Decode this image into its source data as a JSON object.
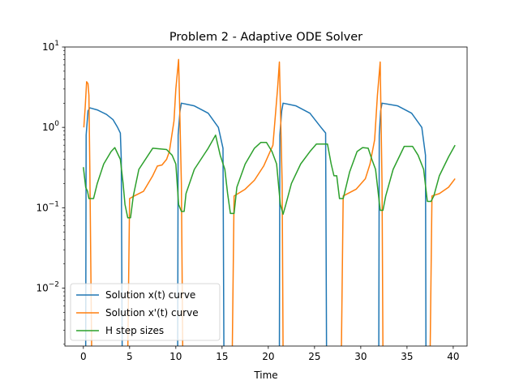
{
  "chart_data": {
    "type": "line",
    "title": "Problem 2 - Adaptive ODE Solver",
    "xlabel": "Time",
    "ylabel": "",
    "yscale": "log",
    "xlim": [
      -2,
      41.5
    ],
    "ylim": [
      0.0019,
      10
    ],
    "xticks": [
      0,
      5,
      10,
      15,
      20,
      25,
      30,
      35,
      40
    ],
    "yticks": [
      {
        "value": 0.01,
        "base": "10",
        "exp": "−2"
      },
      {
        "value": 0.1,
        "base": "10",
        "exp": "−1"
      },
      {
        "value": 1,
        "base": "10",
        "exp": "0"
      },
      {
        "value": 10,
        "base": "10",
        "exp": "1"
      }
    ],
    "grid": false,
    "legend_position": "lower-left",
    "series": [
      {
        "name": "Solution x(t) curve",
        "color": "#1f77b4",
        "points": [
          [
            0.25,
            0.0015
          ],
          [
            0.3,
            0.8
          ],
          [
            0.5,
            1.6
          ],
          [
            0.7,
            1.75
          ],
          [
            1.5,
            1.65
          ],
          [
            2.5,
            1.45
          ],
          [
            3.2,
            1.25
          ],
          [
            3.7,
            1.0
          ],
          [
            4.0,
            0.85
          ],
          [
            4.1,
            0.4
          ],
          [
            4.2,
            0.0015
          ],
          [
            10.2,
            0.0015
          ],
          [
            10.25,
            0.8
          ],
          [
            10.45,
            1.6
          ],
          [
            10.6,
            2.0
          ],
          [
            12.0,
            1.85
          ],
          [
            13.5,
            1.5
          ],
          [
            14.6,
            1.0
          ],
          [
            15.1,
            0.55
          ],
          [
            15.2,
            0.0015
          ],
          [
            21.2,
            0.0015
          ],
          [
            21.25,
            0.8
          ],
          [
            21.45,
            1.6
          ],
          [
            21.6,
            2.0
          ],
          [
            23.0,
            1.85
          ],
          [
            24.5,
            1.5
          ],
          [
            25.7,
            1.0
          ],
          [
            26.2,
            0.85
          ],
          [
            26.3,
            0.0015
          ],
          [
            31.95,
            0.0015
          ],
          [
            32.0,
            0.8
          ],
          [
            32.15,
            1.6
          ],
          [
            32.3,
            2.0
          ],
          [
            34.0,
            1.85
          ],
          [
            35.5,
            1.5
          ],
          [
            36.6,
            1.0
          ],
          [
            37.0,
            0.45
          ],
          [
            37.05,
            0.0015
          ]
        ]
      },
      {
        "name": "Solution x'(t) curve",
        "color": "#ff7f0e",
        "points": [
          [
            0.05,
            1.0
          ],
          [
            0.2,
            1.8
          ],
          [
            0.35,
            3.7
          ],
          [
            0.5,
            3.5
          ],
          [
            0.6,
            2.5
          ],
          [
            0.7,
            0.3
          ],
          [
            0.9,
            0.0015
          ],
          [
            4.8,
            0.0015
          ],
          [
            5.0,
            0.13
          ],
          [
            5.5,
            0.14
          ],
          [
            6.5,
            0.16
          ],
          [
            7.0,
            0.2
          ],
          [
            7.5,
            0.25
          ],
          [
            8.0,
            0.33
          ],
          [
            8.5,
            0.34
          ],
          [
            9.0,
            0.4
          ],
          [
            9.3,
            0.5
          ],
          [
            9.8,
            1.2
          ],
          [
            10.0,
            3.0
          ],
          [
            10.3,
            7.0
          ],
          [
            10.6,
            0.2
          ],
          [
            10.75,
            0.0015
          ],
          [
            16.1,
            0.0015
          ],
          [
            16.3,
            0.14
          ],
          [
            17.5,
            0.17
          ],
          [
            18.5,
            0.22
          ],
          [
            19.5,
            0.33
          ],
          [
            20.5,
            0.6
          ],
          [
            21.0,
            3.0
          ],
          [
            21.2,
            6.5
          ],
          [
            21.5,
            0.2
          ],
          [
            21.6,
            0.0015
          ],
          [
            27.9,
            0.0015
          ],
          [
            28.1,
            0.14
          ],
          [
            29.5,
            0.17
          ],
          [
            30.5,
            0.23
          ],
          [
            31.0,
            0.35
          ],
          [
            31.5,
            0.7
          ],
          [
            31.8,
            2.5
          ],
          [
            32.1,
            6.5
          ],
          [
            32.3,
            0.2
          ],
          [
            32.4,
            0.0015
          ],
          [
            37.5,
            0.0015
          ],
          [
            37.7,
            0.14
          ],
          [
            38.5,
            0.15
          ],
          [
            39.5,
            0.18
          ],
          [
            40.2,
            0.23
          ]
        ]
      },
      {
        "name": "H step sizes",
        "color": "#2ca02c",
        "points": [
          [
            0.0,
            0.32
          ],
          [
            0.25,
            0.18
          ],
          [
            0.45,
            0.16
          ],
          [
            0.6,
            0.13
          ],
          [
            1.1,
            0.13
          ],
          [
            1.5,
            0.2
          ],
          [
            2.2,
            0.35
          ],
          [
            3.0,
            0.5
          ],
          [
            3.4,
            0.56
          ],
          [
            4.0,
            0.4
          ],
          [
            4.3,
            0.2
          ],
          [
            4.5,
            0.11
          ],
          [
            4.8,
            0.075
          ],
          [
            5.1,
            0.075
          ],
          [
            5.4,
            0.14
          ],
          [
            6.0,
            0.3
          ],
          [
            7.5,
            0.55
          ],
          [
            9.0,
            0.53
          ],
          [
            9.6,
            0.45
          ],
          [
            10.0,
            0.35
          ],
          [
            10.3,
            0.11
          ],
          [
            10.6,
            0.09
          ],
          [
            10.9,
            0.09
          ],
          [
            11.1,
            0.15
          ],
          [
            12.0,
            0.3
          ],
          [
            13.5,
            0.55
          ],
          [
            14.3,
            0.8
          ],
          [
            14.8,
            0.45
          ],
          [
            15.3,
            0.3
          ],
          [
            15.6,
            0.15
          ],
          [
            15.9,
            0.085
          ],
          [
            16.3,
            0.085
          ],
          [
            16.6,
            0.18
          ],
          [
            17.5,
            0.35
          ],
          [
            18.5,
            0.55
          ],
          [
            19.2,
            0.65
          ],
          [
            19.8,
            0.65
          ],
          [
            20.4,
            0.5
          ],
          [
            20.9,
            0.35
          ],
          [
            21.3,
            0.11
          ],
          [
            21.6,
            0.083
          ],
          [
            21.9,
            0.11
          ],
          [
            22.5,
            0.2
          ],
          [
            23.5,
            0.35
          ],
          [
            24.5,
            0.5
          ],
          [
            25.2,
            0.62
          ],
          [
            26.4,
            0.62
          ],
          [
            26.8,
            0.35
          ],
          [
            27.1,
            0.25
          ],
          [
            27.4,
            0.25
          ],
          [
            27.7,
            0.13
          ],
          [
            28.1,
            0.13
          ],
          [
            28.8,
            0.28
          ],
          [
            29.6,
            0.5
          ],
          [
            30.2,
            0.56
          ],
          [
            30.8,
            0.55
          ],
          [
            31.2,
            0.4
          ],
          [
            31.6,
            0.3
          ],
          [
            32.1,
            0.093
          ],
          [
            32.4,
            0.093
          ],
          [
            32.7,
            0.14
          ],
          [
            33.5,
            0.3
          ],
          [
            34.7,
            0.58
          ],
          [
            35.6,
            0.58
          ],
          [
            36.2,
            0.45
          ],
          [
            36.8,
            0.3
          ],
          [
            37.2,
            0.12
          ],
          [
            37.6,
            0.12
          ],
          [
            37.9,
            0.14
          ],
          [
            38.5,
            0.25
          ],
          [
            39.5,
            0.43
          ],
          [
            40.2,
            0.6
          ]
        ]
      }
    ]
  }
}
